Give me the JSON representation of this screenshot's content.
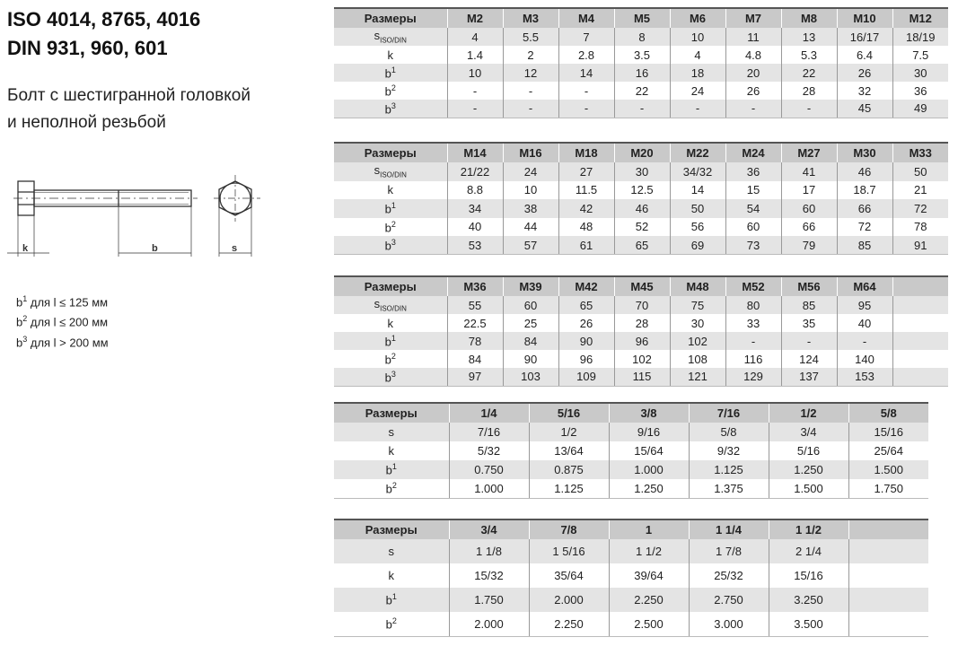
{
  "title": {
    "line1": "ISO 4014, 8765, 4016",
    "line2": "DIN 931, 960, 601"
  },
  "subtitle": {
    "line1": "Болт с шестигранной головкой",
    "line2": "и неполной резьбой"
  },
  "diagram": {
    "label_k": "k",
    "label_b": "b",
    "label_s": "s"
  },
  "notes": [
    {
      "base": "b",
      "sup": "1",
      "text": " для l ≤ 125 мм"
    },
    {
      "base": "b",
      "sup": "2",
      "text": " для l ≤ 200 мм"
    },
    {
      "base": "b",
      "sup": "3",
      "text": " для l > 200 мм"
    }
  ],
  "tables": [
    {
      "header_label": "Размеры",
      "columns": [
        "M2",
        "M3",
        "M4",
        "M5",
        "M6",
        "M7",
        "M8",
        "M10",
        "M12"
      ],
      "rows": [
        {
          "label": "s",
          "sub": "ISO/DIN",
          "values": [
            "4",
            "5.5",
            "7",
            "8",
            "10",
            "11",
            "13",
            "16/17",
            "18/19"
          ]
        },
        {
          "label": "k",
          "values": [
            "1.4",
            "2",
            "2.8",
            "3.5",
            "4",
            "4.8",
            "5.3",
            "6.4",
            "7.5"
          ]
        },
        {
          "label": "b",
          "sup": "1",
          "values": [
            "10",
            "12",
            "14",
            "16",
            "18",
            "20",
            "22",
            "26",
            "30"
          ]
        },
        {
          "label": "b",
          "sup": "2",
          "values": [
            "-",
            "-",
            "-",
            "22",
            "24",
            "26",
            "28",
            "32",
            "36"
          ]
        },
        {
          "label": "b",
          "sup": "3",
          "values": [
            "-",
            "-",
            "-",
            "-",
            "-",
            "-",
            "-",
            "45",
            "49"
          ]
        }
      ]
    },
    {
      "header_label": "Размеры",
      "columns": [
        "M14",
        "M16",
        "M18",
        "M20",
        "M22",
        "M24",
        "M27",
        "M30",
        "M33"
      ],
      "rows": [
        {
          "label": "s",
          "sub": "ISO/DIN",
          "values": [
            "21/22",
            "24",
            "27",
            "30",
            "34/32",
            "36",
            "41",
            "46",
            "50"
          ]
        },
        {
          "label": "k",
          "values": [
            "8.8",
            "10",
            "11.5",
            "12.5",
            "14",
            "15",
            "17",
            "18.7",
            "21"
          ]
        },
        {
          "label": "b",
          "sup": "1",
          "values": [
            "34",
            "38",
            "42",
            "46",
            "50",
            "54",
            "60",
            "66",
            "72"
          ]
        },
        {
          "label": "b",
          "sup": "2",
          "values": [
            "40",
            "44",
            "48",
            "52",
            "56",
            "60",
            "66",
            "72",
            "78"
          ]
        },
        {
          "label": "b",
          "sup": "3",
          "values": [
            "53",
            "57",
            "61",
            "65",
            "69",
            "73",
            "79",
            "85",
            "91"
          ]
        }
      ]
    },
    {
      "header_label": "Размеры",
      "columns": [
        "M36",
        "M39",
        "M42",
        "M45",
        "M48",
        "M52",
        "M56",
        "M64",
        ""
      ],
      "rows": [
        {
          "label": "s",
          "sub": "ISO/DIN",
          "values": [
            "55",
            "60",
            "65",
            "70",
            "75",
            "80",
            "85",
            "95",
            ""
          ]
        },
        {
          "label": "k",
          "values": [
            "22.5",
            "25",
            "26",
            "28",
            "30",
            "33",
            "35",
            "40",
            ""
          ]
        },
        {
          "label": "b",
          "sup": "1",
          "values": [
            "78",
            "84",
            "90",
            "96",
            "102",
            "-",
            "-",
            "-",
            ""
          ]
        },
        {
          "label": "b",
          "sup": "2",
          "values": [
            "84",
            "90",
            "96",
            "102",
            "108",
            "116",
            "124",
            "140",
            ""
          ]
        },
        {
          "label": "b",
          "sup": "3",
          "values": [
            "97",
            "103",
            "109",
            "115",
            "121",
            "129",
            "137",
            "153",
            ""
          ]
        }
      ]
    },
    {
      "header_label": "Размеры",
      "columns": [
        "1/4",
        "5/16",
        "3/8",
        "7/16",
        "1/2",
        "5/8"
      ],
      "rows": [
        {
          "label": "s",
          "values": [
            "7/16",
            "1/2",
            "9/16",
            "5/8",
            "3/4",
            "15/16"
          ]
        },
        {
          "label": "k",
          "values": [
            "5/32",
            "13/64",
            "15/64",
            "9/32",
            "5/16",
            "25/64"
          ]
        },
        {
          "label": "b",
          "sup": "1",
          "values": [
            "0.750",
            "0.875",
            "1.000",
            "1.125",
            "1.250",
            "1.500"
          ]
        },
        {
          "label": "b",
          "sup": "2",
          "values": [
            "1.000",
            "1.125",
            "1.250",
            "1.375",
            "1.500",
            "1.750"
          ]
        }
      ]
    },
    {
      "header_label": "Размеры",
      "columns": [
        "3/4",
        "7/8",
        "1",
        "1 1/4",
        "1 1/2",
        ""
      ],
      "rows": [
        {
          "label": "s",
          "values": [
            "1 1/8",
            "1 5/16",
            "1 1/2",
            "1 7/8",
            "2 1/4",
            ""
          ]
        },
        {
          "label": "k",
          "values": [
            "15/32",
            "35/64",
            "39/64",
            "25/32",
            "15/16",
            ""
          ]
        },
        {
          "label": "b",
          "sup": "1",
          "values": [
            "1.750",
            "2.000",
            "2.250",
            "2.750",
            "3.250",
            ""
          ]
        },
        {
          "label": "b",
          "sup": "2",
          "values": [
            "2.000",
            "2.250",
            "2.500",
            "3.000",
            "3.500",
            ""
          ]
        }
      ]
    }
  ]
}
